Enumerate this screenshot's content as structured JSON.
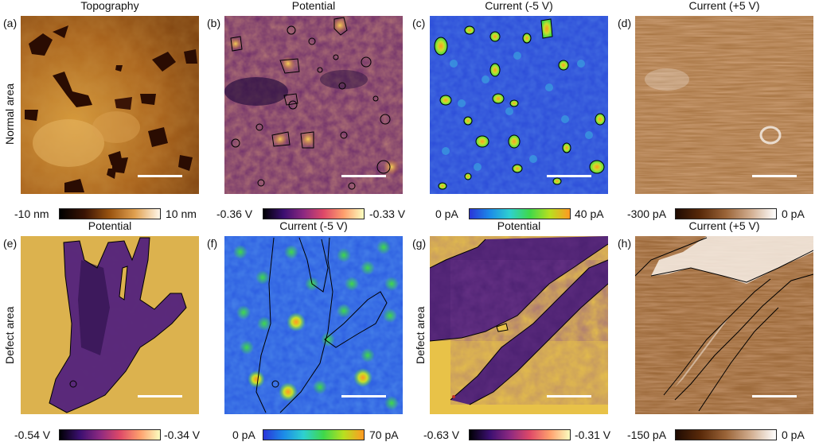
{
  "rows": [
    {
      "label": "Normal area"
    },
    {
      "label": "Defect area"
    }
  ],
  "panels": [
    {
      "letter": "(a)",
      "title": "Topography",
      "cbar_min": "-10 nm",
      "cbar_max": "10 nm",
      "colormap": "copper"
    },
    {
      "letter": "(b)",
      "title": "Potential",
      "cbar_min": "-0.36 V",
      "cbar_max": "-0.33 V",
      "colormap": "inferno"
    },
    {
      "letter": "(c)",
      "title": "Current (-5 V)",
      "cbar_min": "0 pA",
      "cbar_max": "40 pA",
      "colormap": "jet"
    },
    {
      "letter": "(d)",
      "title": "Current (+5 V)",
      "cbar_min": "-300 pA",
      "cbar_max": "0 pA",
      "colormap": "brown-white"
    },
    {
      "letter": "(e)",
      "title": "Potential",
      "cbar_min": "-0.54 V",
      "cbar_max": "-0.34 V",
      "colormap": "inferno"
    },
    {
      "letter": "(f)",
      "title": "Current (-5 V)",
      "cbar_min": "0 pA",
      "cbar_max": "70 pA",
      "colormap": "jet"
    },
    {
      "letter": "(g)",
      "title": "Potential",
      "cbar_min": "-0.63 V",
      "cbar_max": "-0.31 V",
      "colormap": "inferno"
    },
    {
      "letter": "(h)",
      "title": "Current (+5 V)",
      "cbar_min": "-150 pA",
      "cbar_max": "0 pA",
      "colormap": "brown-white"
    }
  ],
  "colors": {
    "copper_dark": "#2a0c02",
    "copper_mid": "#9a5410",
    "copper_light": "#f4e4c0",
    "inferno_dark": "#1b0a3a",
    "inferno_mid": "#b0487a",
    "inferno_light": "#f5e27a",
    "jet_low": "#2a35d8",
    "jet_mid": "#3fd84a",
    "jet_high": "#ff9a22",
    "brown_dark": "#2d1204",
    "brown_light": "#ffffff"
  }
}
